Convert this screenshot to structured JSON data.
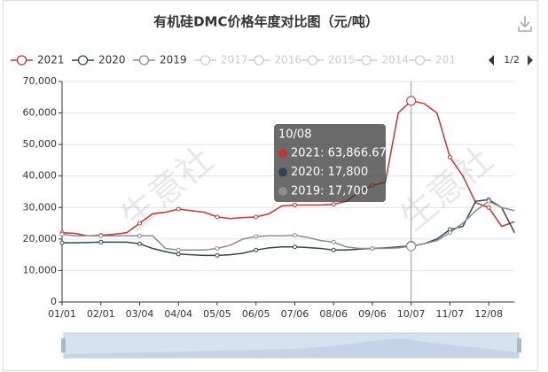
{
  "chart_data": {
    "type": "line",
    "title": "有机硅DMC价格年度对比图（元/吨）",
    "categories": [
      "01/01",
      null,
      null,
      "02/01",
      null,
      null,
      "03/04",
      null,
      null,
      "04/04",
      null,
      null,
      "05/05",
      null,
      null,
      "06/05",
      null,
      null,
      "07/06",
      null,
      null,
      "08/06",
      null,
      null,
      "09/06",
      null,
      null,
      "10/07",
      null,
      null,
      "11/07",
      null,
      null,
      "12/08",
      null,
      null
    ],
    "series": [
      {
        "name": "2021",
        "color": "#c23531",
        "values": [
          22000,
          21800,
          21000,
          21200,
          21500,
          22000,
          25000,
          28000,
          28500,
          29500,
          29000,
          28500,
          27000,
          26500,
          26800,
          27000,
          28000,
          30500,
          30800,
          30800,
          30800,
          31000,
          32000,
          35000,
          37000,
          38000,
          60000,
          63866.67,
          63000,
          60000,
          46000,
          40000,
          31500,
          30000,
          24000,
          25500
        ]
      },
      {
        "name": "2020",
        "color": "#2f4554",
        "values": [
          18800,
          18800,
          18900,
          19000,
          19000,
          19000,
          18500,
          17000,
          16000,
          15200,
          15000,
          14800,
          14800,
          15000,
          15500,
          16500,
          17200,
          17500,
          17500,
          17300,
          17000,
          16500,
          16500,
          16800,
          17000,
          17200,
          17500,
          17800,
          18500,
          20000,
          23000,
          24000,
          32000,
          32500,
          30000,
          22000
        ]
      },
      {
        "name": "2019",
        "color": "#8c8c8c",
        "values": [
          21500,
          21000,
          21000,
          21000,
          21000,
          21000,
          21000,
          21000,
          17000,
          16500,
          16500,
          16500,
          17000,
          18000,
          20000,
          20800,
          21000,
          21000,
          21200,
          20500,
          19500,
          19000,
          17500,
          17000,
          17000,
          17000,
          17200,
          17700,
          18500,
          19500,
          22000,
          25000,
          29000,
          32000,
          30000,
          29000
        ]
      }
    ],
    "inactive_legend": [
      "2017",
      "2016",
      "2015",
      "2014",
      "201"
    ],
    "legend_page": "1/2",
    "ylim": [
      0,
      70000
    ],
    "yticks": [
      0,
      {
        "value": 10000,
        "label": "10,000"
      },
      {
        "value": 20000,
        "label": "20,000"
      },
      {
        "value": 30000,
        "label": "30,000"
      },
      {
        "value": 40000,
        "label": "40,000"
      },
      {
        "value": 50000,
        "label": "50,000"
      },
      {
        "value": 60000,
        "label": "60,000"
      },
      {
        "value": 70000,
        "label": "70,000"
      }
    ],
    "grid": true,
    "tooltip": {
      "title": "10/08",
      "lines": [
        "2021: 63,866.67",
        "2020: 17,800",
        "2019: 17,700"
      ]
    },
    "watermark": "生意社"
  }
}
